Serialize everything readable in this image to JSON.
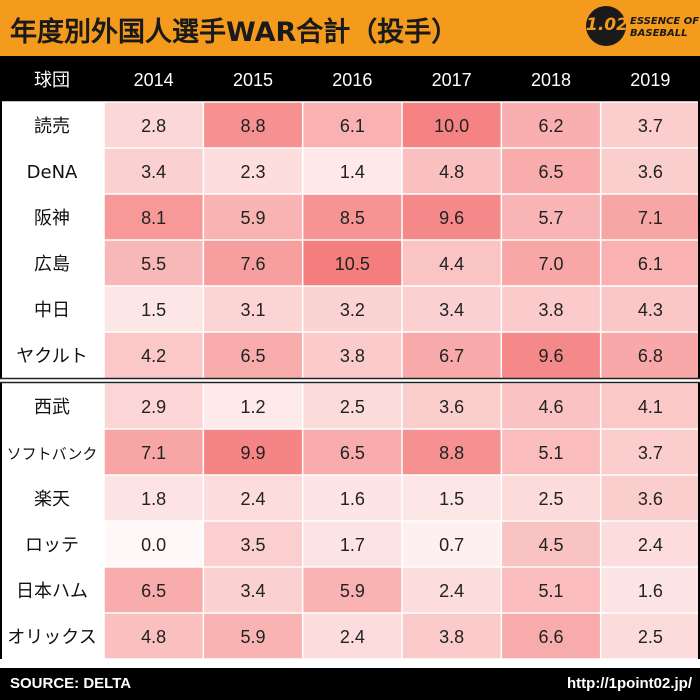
{
  "header": {
    "title": "年度別外国人選手WAR合計（投手）",
    "logo_number": "1.02",
    "logo_line1": "ESSENCE OF",
    "logo_line2": "BASEBALL"
  },
  "footer": {
    "source": "SOURCE: DELTA",
    "url": "http://1point02.jp/"
  },
  "chart_data": {
    "type": "table",
    "title": "年度別外国人選手WAR合計（投手）",
    "corner_label": "球団",
    "columns": [
      "2014",
      "2015",
      "2016",
      "2017",
      "2018",
      "2019"
    ],
    "color_scale": {
      "min": 0.0,
      "max": 10.5,
      "low": "#fff8f8",
      "high": "#f47d7d"
    },
    "group_divider_after_row": 5,
    "rows": [
      {
        "team": "読売",
        "values": [
          2.8,
          8.8,
          6.1,
          10.0,
          6.2,
          3.7
        ]
      },
      {
        "team": "DeNA",
        "values": [
          3.4,
          2.3,
          1.4,
          4.8,
          6.5,
          3.6
        ]
      },
      {
        "team": "阪神",
        "values": [
          8.1,
          5.9,
          8.5,
          9.6,
          5.7,
          7.1
        ]
      },
      {
        "team": "広島",
        "values": [
          5.5,
          7.6,
          10.5,
          4.4,
          7.0,
          6.1
        ]
      },
      {
        "team": "中日",
        "values": [
          1.5,
          3.1,
          3.2,
          3.4,
          3.8,
          4.3
        ]
      },
      {
        "team": "ヤクルト",
        "values": [
          4.2,
          6.5,
          3.8,
          6.7,
          9.6,
          6.8
        ]
      },
      {
        "team": "西武",
        "values": [
          2.9,
          1.2,
          2.5,
          3.6,
          4.6,
          4.1
        ]
      },
      {
        "team": "ソフトバンク",
        "values": [
          7.1,
          9.9,
          6.5,
          8.8,
          5.1,
          3.7
        ]
      },
      {
        "team": "楽天",
        "values": [
          1.8,
          2.4,
          1.6,
          1.5,
          2.5,
          3.6
        ]
      },
      {
        "team": "ロッテ",
        "values": [
          0.0,
          3.5,
          1.7,
          0.7,
          4.5,
          2.4
        ]
      },
      {
        "team": "日本ハム",
        "values": [
          6.5,
          3.4,
          5.9,
          2.4,
          5.1,
          1.6
        ]
      },
      {
        "team": "オリックス",
        "values": [
          4.8,
          5.9,
          2.4,
          3.8,
          6.6,
          2.5
        ]
      }
    ]
  }
}
